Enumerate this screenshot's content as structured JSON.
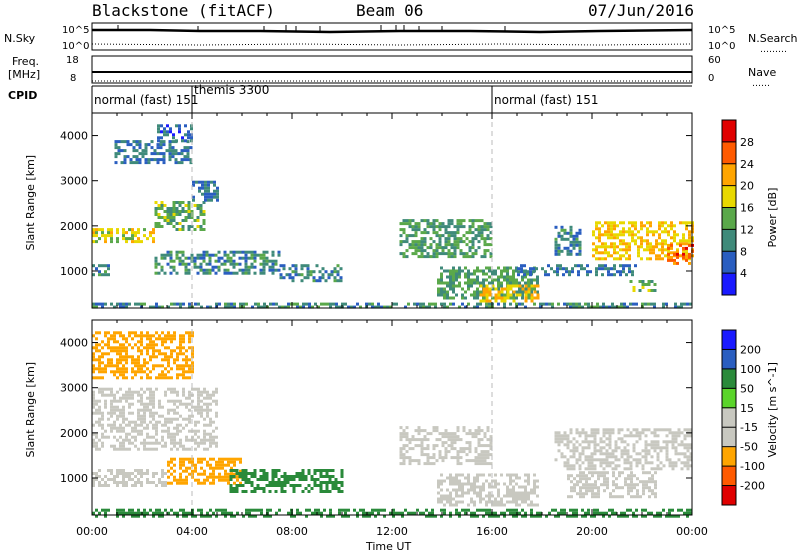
{
  "header": {
    "station": "Blackstone (fitACF)",
    "beam": "Beam 06",
    "date": "07/Jun/2016"
  },
  "summary_labels": {
    "nsky": "N.Sky",
    "nsearch": "N.Search",
    "nsearch_dots": "………",
    "freq_line1": "Freq.",
    "freq_line2": "[MHz]",
    "nave": "Nave",
    "nave_dots": "……",
    "cpid": "CPID",
    "left_ticks_top": [
      "10^5",
      "10^0"
    ],
    "left_ticks_freq": [
      "18",
      "8"
    ],
    "right_ticks_top": [
      "10^5",
      "10^0"
    ],
    "right_ticks_nave": [
      "60",
      "0"
    ]
  },
  "cpid_segments": [
    {
      "label": "normal (fast) 151",
      "start_hour": 0
    },
    {
      "label": "themis 3300",
      "start_hour": 4
    },
    {
      "label": "normal (fast) 151",
      "start_hour": 16
    }
  ],
  "colors": {
    "power_scale": [
      "#1a1aff",
      "#2a5ec0",
      "#3f8a7a",
      "#5aa84a",
      "#e8d800",
      "#ffa500",
      "#ff5a00",
      "#e00000"
    ],
    "velocity_scale": [
      "#e00000",
      "#ff5a00",
      "#ffa500",
      "#c8c8c0",
      "#c8c8c0",
      "#5ad42a",
      "#2a8a3a",
      "#2a5ec0",
      "#1a1aff"
    ],
    "ground_scatter": "#c8c8c0"
  },
  "chart_data": [
    {
      "type": "heatmap",
      "title": "Power",
      "xlabel": "Time UT",
      "ylabel": "Slant Range [km]",
      "colorbar_label": "Power [dB]",
      "xlim": [
        0,
        24
      ],
      "ylim": [
        180,
        4500
      ],
      "x_ticks": [
        "00:00",
        "04:00",
        "08:00",
        "12:00",
        "16:00",
        "20:00",
        "00:00"
      ],
      "y_ticks": [
        1000,
        2000,
        3000,
        4000
      ],
      "colorbar_ticks": [
        4,
        8,
        12,
        16,
        20,
        24,
        28
      ],
      "colorbar_range": [
        0,
        32
      ],
      "regions": [
        {
          "t": [
            0.9,
            4.0
          ],
          "r": [
            3400,
            3900
          ],
          "value": 8
        },
        {
          "t": [
            2.6,
            4.0
          ],
          "r": [
            3900,
            4250
          ],
          "value": 7
        },
        {
          "t": [
            0.0,
            2.5
          ],
          "r": [
            1650,
            1950
          ],
          "value": 18
        },
        {
          "t": [
            2.5,
            4.5
          ],
          "r": [
            1950,
            2550
          ],
          "value": 13
        },
        {
          "t": [
            4.0,
            5.0
          ],
          "r": [
            2550,
            3000
          ],
          "value": 8
        },
        {
          "t": [
            0.0,
            0.7
          ],
          "r": [
            900,
            1150
          ],
          "value": 10
        },
        {
          "t": [
            2.5,
            7.5
          ],
          "r": [
            950,
            1450
          ],
          "value": 10
        },
        {
          "t": [
            7.5,
            10.0
          ],
          "r": [
            800,
            1150
          ],
          "value": 9
        },
        {
          "t": [
            12.3,
            16.0
          ],
          "r": [
            1350,
            2150
          ],
          "value": 12
        },
        {
          "t": [
            13.8,
            17.8
          ],
          "r": [
            400,
            1100
          ],
          "value": 12
        },
        {
          "t": [
            15.5,
            17.8
          ],
          "r": [
            350,
            700
          ],
          "value": 20
        },
        {
          "t": [
            17.0,
            21.8
          ],
          "r": [
            900,
            1150
          ],
          "value": 8
        },
        {
          "t": [
            18.5,
            19.5
          ],
          "r": [
            1400,
            2000
          ],
          "value": 9
        },
        {
          "t": [
            20.0,
            24.0
          ],
          "r": [
            1300,
            2100
          ],
          "value": 20
        },
        {
          "t": [
            23.0,
            24.0
          ],
          "r": [
            1200,
            1600
          ],
          "value": 26
        },
        {
          "t": [
            21.5,
            22.5
          ],
          "r": [
            600,
            800
          ],
          "value": 14
        },
        {
          "t": [
            0.0,
            24.0
          ],
          "r": [
            180,
            300
          ],
          "value": 10
        }
      ]
    },
    {
      "type": "heatmap",
      "title": "Velocity",
      "xlabel": "Time UT",
      "ylabel": "Slant Range [km]",
      "colorbar_label": "Velocity [m s^-1]",
      "xlim": [
        0,
        24
      ],
      "ylim": [
        180,
        4500
      ],
      "x_ticks": [
        "00:00",
        "04:00",
        "08:00",
        "12:00",
        "16:00",
        "20:00",
        "00:00"
      ],
      "y_ticks": [
        1000,
        2000,
        3000,
        4000
      ],
      "colorbar_ticks": [
        -200,
        -100,
        -50,
        -15,
        15,
        50,
        100,
        200
      ],
      "regions": [
        {
          "t": [
            0.0,
            4.0
          ],
          "r": [
            3200,
            4250
          ],
          "value": -60
        },
        {
          "t": [
            0.0,
            5.0
          ],
          "r": [
            1650,
            3000
          ],
          "value": 0
        },
        {
          "t": [
            3.0,
            6.0
          ],
          "r": [
            900,
            1450
          ],
          "value": -60
        },
        {
          "t": [
            5.5,
            10.0
          ],
          "r": [
            700,
            1200
          ],
          "value": 40
        },
        {
          "t": [
            0.0,
            3.0
          ],
          "r": [
            850,
            1200
          ],
          "value": 0
        },
        {
          "t": [
            12.3,
            16.0
          ],
          "r": [
            1350,
            2150
          ],
          "value": 0
        },
        {
          "t": [
            13.8,
            17.8
          ],
          "r": [
            400,
            1100
          ],
          "value": 0
        },
        {
          "t": [
            18.5,
            24.0
          ],
          "r": [
            1200,
            2100
          ],
          "value": 0
        },
        {
          "t": [
            19.0,
            22.5
          ],
          "r": [
            600,
            1150
          ],
          "value": 0
        },
        {
          "t": [
            0.0,
            24.0
          ],
          "r": [
            180,
            320
          ],
          "value": 40
        }
      ]
    }
  ]
}
